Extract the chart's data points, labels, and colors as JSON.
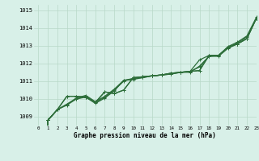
{
  "background_color": "#d8f0e8",
  "grid_color": "#b8d8c8",
  "line_color": "#2d6e3a",
  "xlabel": "Graphe pression niveau de la mer (hPa)",
  "xlim": [
    -0.5,
    23
  ],
  "ylim": [
    1008.5,
    1015.3
  ],
  "yticks": [
    1009,
    1010,
    1011,
    1012,
    1013,
    1014,
    1015
  ],
  "xticks": [
    0,
    1,
    2,
    3,
    4,
    5,
    6,
    7,
    8,
    9,
    10,
    11,
    12,
    13,
    14,
    15,
    16,
    17,
    18,
    19,
    20,
    21,
    22,
    23
  ],
  "series": [
    [
      0,
      1008.8,
      1009.4,
      1009.7,
      1010.0,
      1010.15,
      1009.8,
      1010.1,
      1010.5,
      1011.0,
      1011.15,
      1011.2,
      1011.3,
      1011.35,
      1011.4,
      1011.5,
      1011.55,
      1011.8,
      1012.4,
      1012.45,
      1012.9,
      1013.15,
      1013.5,
      1014.55
    ],
    [
      0,
      1008.8,
      1009.4,
      1009.7,
      1010.05,
      1010.2,
      1009.85,
      1010.15,
      1010.55,
      1011.05,
      1011.15,
      1011.25,
      1011.3,
      1011.35,
      1011.45,
      1011.5,
      1011.55,
      1012.2,
      1012.45,
      1012.45,
      1012.95,
      1013.2,
      1013.55,
      1014.6
    ],
    [
      0,
      1008.8,
      1009.4,
      1010.15,
      1010.15,
      1010.1,
      1009.8,
      1010.4,
      1010.3,
      1010.5,
      1011.2,
      1011.25,
      1011.3,
      1011.35,
      1011.45,
      1011.5,
      1011.55,
      1011.6,
      1012.45,
      1012.45,
      1012.9,
      1013.1,
      1013.4,
      1014.55
    ],
    [
      0,
      1008.8,
      1009.4,
      1010.15,
      1010.15,
      1010.1,
      1009.8,
      1010.4,
      1010.3,
      1010.5,
      1011.2,
      1011.25,
      1011.3,
      1011.35,
      1011.45,
      1011.5,
      1011.55,
      1011.6,
      1012.45,
      1012.45,
      1012.9,
      1013.1,
      1013.4,
      1014.55
    ],
    [
      0,
      1008.8,
      1009.4,
      1009.65,
      1010.0,
      1010.1,
      1009.75,
      1010.05,
      1010.45,
      1011.05,
      1011.1,
      1011.2,
      1011.3,
      1011.35,
      1011.4,
      1011.5,
      1011.5,
      1011.85,
      1012.4,
      1012.4,
      1012.85,
      1013.1,
      1013.4,
      1014.55
    ]
  ],
  "marker": "+",
  "markersize": 3,
  "linewidth": 0.9
}
